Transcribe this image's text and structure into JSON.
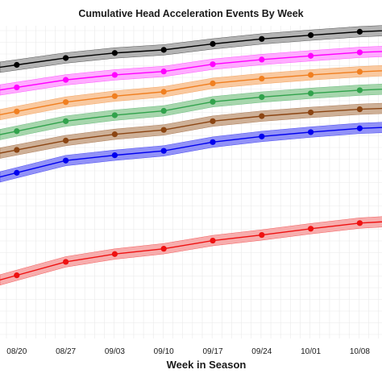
{
  "chart_data": {
    "type": "line",
    "title": "Cumulative Head Acceleration Events By Week",
    "xlabel": "Week in Season",
    "ylabel": "",
    "categories": [
      "",
      "08/20",
      "08/27",
      "09/03",
      "09/10",
      "09/17",
      "09/24",
      "10/01",
      "10/08",
      ""
    ],
    "ylim": [
      0,
      100
    ],
    "grid": true,
    "legend": "none",
    "series": [
      {
        "color": "#000000",
        "band": "#a6a6a6",
        "values": [
          null,
          87.5,
          89.7,
          91.3,
          92.3,
          94.2,
          95.8,
          97.0,
          98.1,
          98.8
        ]
      },
      {
        "color": "#ff00ff",
        "band": "#ff9dff",
        "values": [
          null,
          80.3,
          82.7,
          84.3,
          85.4,
          87.7,
          89.2,
          90.4,
          91.5,
          92.1
        ]
      },
      {
        "color": "#f07f20",
        "band": "#f8bf8f",
        "values": [
          null,
          72.6,
          75.6,
          77.5,
          78.9,
          81.6,
          83.1,
          84.3,
          85.3,
          86.0
        ]
      },
      {
        "color": "#31a24c",
        "band": "#98cf9f",
        "values": [
          null,
          66.3,
          69.5,
          71.4,
          72.8,
          75.7,
          77.2,
          78.4,
          79.4,
          80.1
        ]
      },
      {
        "color": "#8b4513",
        "band": "#c5a285",
        "values": [
          null,
          60.3,
          63.3,
          65.3,
          66.7,
          69.5,
          71.1,
          72.3,
          73.3,
          73.9
        ]
      },
      {
        "color": "#0000ee",
        "band": "#7f7ff6",
        "values": [
          null,
          53.0,
          56.9,
          58.6,
          60.0,
          62.8,
          64.6,
          66.0,
          67.2,
          67.8
        ]
      },
      {
        "color": "#ee1111",
        "band": "#f69f9f",
        "values": [
          null,
          20.2,
          24.5,
          27.0,
          28.7,
          31.3,
          33.1,
          35.1,
          36.9,
          37.8
        ]
      }
    ]
  }
}
